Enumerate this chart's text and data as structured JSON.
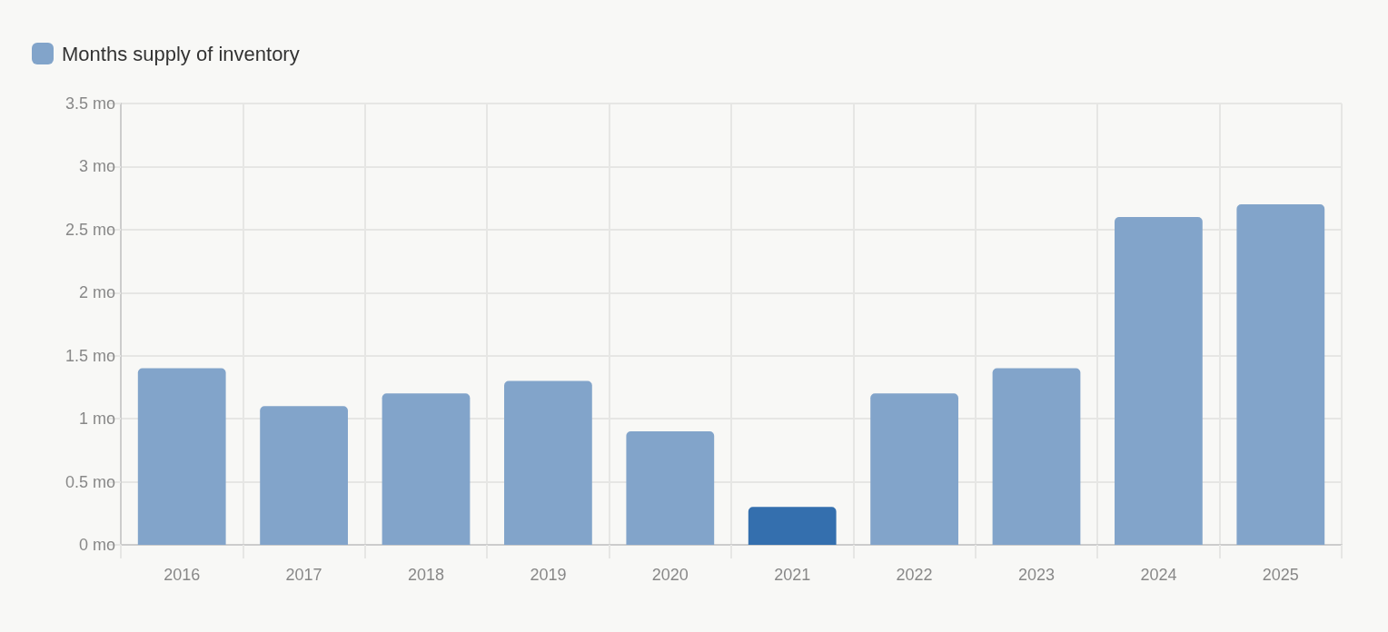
{
  "chart_data": {
    "type": "bar",
    "categories": [
      "2016",
      "2017",
      "2018",
      "2019",
      "2020",
      "2021",
      "2022",
      "2023",
      "2024",
      "2025"
    ],
    "series": [
      {
        "name": "Months supply of inventory",
        "color": "#82a4ca",
        "colors": [
          "#82a4ca",
          "#82a4ca",
          "#82a4ca",
          "#82a4ca",
          "#82a4ca",
          "#346fae",
          "#82a4ca",
          "#82a4ca",
          "#82a4ca",
          "#82a4ca"
        ],
        "values": [
          1.4,
          1.1,
          1.2,
          1.3,
          0.9,
          0.3,
          1.2,
          1.4,
          2.6,
          2.7
        ]
      }
    ],
    "ylim": [
      0,
      3.5
    ],
    "yticks": [
      {
        "value": 0,
        "label": "0 mo"
      },
      {
        "value": 0.5,
        "label": "0.5 mo"
      },
      {
        "value": 1,
        "label": "1 mo"
      },
      {
        "value": 1.5,
        "label": "1.5 mo"
      },
      {
        "value": 2,
        "label": "2 mo"
      },
      {
        "value": 2.5,
        "label": "2.5 mo"
      },
      {
        "value": 3,
        "label": "3 mo"
      },
      {
        "value": 3.5,
        "label": "3.5 mo"
      }
    ],
    "grid": true,
    "legend": "top left"
  }
}
